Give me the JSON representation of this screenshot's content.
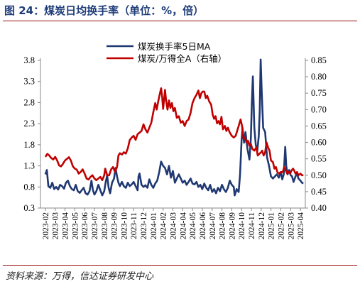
{
  "figure": {
    "title": "图 24：煤炭日均换手率（单位：%，倍）",
    "source": "资料来源：万得，信达证券研发中心"
  },
  "chart_data": {
    "type": "line",
    "xlabel": "",
    "ylabel": "",
    "y_left": {
      "lim": [
        0.3,
        3.8
      ],
      "ticks": [
        "3.8",
        "3.3",
        "2.8",
        "2.3",
        "1.8",
        "1.3",
        "0.8",
        "0.3"
      ]
    },
    "y_right": {
      "lim": [
        0.4,
        0.85
      ],
      "ticks": [
        "0.85",
        "0.80",
        "0.75",
        "0.70",
        "0.65",
        "0.60",
        "0.55",
        "0.50",
        "0.45",
        "0.40"
      ]
    },
    "x_ticks": [
      "2023-02",
      "2023-03",
      "2023-04",
      "2023-05",
      "2023-06",
      "2023-07",
      "2023-08",
      "2023-09",
      "2023-10",
      "2023-11",
      "2023-12",
      "2024-01",
      "2024-02",
      "2024-03",
      "2024-04",
      "2024-05",
      "2024-06",
      "2024-07",
      "2024-08",
      "2024-09",
      "2024-10",
      "2024-11",
      "2024-12",
      "2025-01",
      "2025-02",
      "2025-03",
      "2025-04"
    ],
    "legend": {
      "position": "top-center"
    },
    "colors": {
      "left": "#1f3872",
      "right": "#c00000"
    },
    "series": [
      {
        "name": "煤炭换手率5日MA",
        "axis": "left",
        "points": [
          [
            0.0,
            1.1
          ],
          [
            0.15,
            1.2
          ],
          [
            0.3,
            0.82
          ],
          [
            0.5,
            0.78
          ],
          [
            0.7,
            0.9
          ],
          [
            0.9,
            0.75
          ],
          [
            1.1,
            0.8
          ],
          [
            1.3,
            0.74
          ],
          [
            1.5,
            0.85
          ],
          [
            1.7,
            0.82
          ],
          [
            1.9,
            0.76
          ],
          [
            2.1,
            0.9
          ],
          [
            2.3,
            0.95
          ],
          [
            2.5,
            0.82
          ],
          [
            2.7,
            0.75
          ],
          [
            2.9,
            0.72
          ],
          [
            3.1,
            0.85
          ],
          [
            3.3,
            0.7
          ],
          [
            3.5,
            0.66
          ],
          [
            3.7,
            0.72
          ],
          [
            3.9,
            0.78
          ],
          [
            4.1,
            0.65
          ],
          [
            4.3,
            0.62
          ],
          [
            4.5,
            0.7
          ],
          [
            4.7,
            0.95
          ],
          [
            4.85,
            0.72
          ],
          [
            5.0,
            0.62
          ],
          [
            5.2,
            0.7
          ],
          [
            5.4,
            0.85
          ],
          [
            5.6,
            0.72
          ],
          [
            5.8,
            0.6
          ],
          [
            6.0,
            0.7
          ],
          [
            6.15,
            0.92
          ],
          [
            6.3,
            1.07
          ],
          [
            6.45,
            0.78
          ],
          [
            6.6,
            0.65
          ],
          [
            6.8,
            0.9
          ],
          [
            7.0,
            1.0
          ],
          [
            7.15,
            1.25
          ],
          [
            7.3,
            1.05
          ],
          [
            7.45,
            0.9
          ],
          [
            7.6,
            0.82
          ],
          [
            7.8,
            0.92
          ],
          [
            8.0,
            0.82
          ],
          [
            8.2,
            0.78
          ],
          [
            8.4,
            0.9
          ],
          [
            8.6,
            0.82
          ],
          [
            8.8,
            0.86
          ],
          [
            9.0,
            0.92
          ],
          [
            9.2,
            0.82
          ],
          [
            9.4,
            0.72
          ],
          [
            9.5,
            1.05
          ],
          [
            9.6,
            1.12
          ],
          [
            9.8,
            0.85
          ],
          [
            10.0,
            0.8
          ],
          [
            10.2,
            0.84
          ],
          [
            10.4,
            0.78
          ],
          [
            10.6,
            0.98
          ],
          [
            10.8,
            0.85
          ],
          [
            11.0,
            0.78
          ],
          [
            11.2,
            0.88
          ],
          [
            11.4,
            0.95
          ],
          [
            11.6,
            1.15
          ],
          [
            11.8,
            1.4
          ],
          [
            12.0,
            1.3
          ],
          [
            12.2,
            1.25
          ],
          [
            12.4,
            1.1
          ],
          [
            12.6,
            1.3
          ],
          [
            12.8,
            1.02
          ],
          [
            13.0,
            1.18
          ],
          [
            13.2,
            0.9
          ],
          [
            13.4,
            1.0
          ],
          [
            13.6,
            1.1
          ],
          [
            13.8,
            1.0
          ],
          [
            14.0,
            0.9
          ],
          [
            14.2,
            0.95
          ],
          [
            14.4,
            0.85
          ],
          [
            14.6,
            0.92
          ],
          [
            14.8,
            1.0
          ],
          [
            15.0,
            0.88
          ],
          [
            15.2,
            0.86
          ],
          [
            15.4,
            0.92
          ],
          [
            15.6,
            0.8
          ],
          [
            15.8,
            0.85
          ],
          [
            16.0,
            0.75
          ],
          [
            16.2,
            0.88
          ],
          [
            16.4,
            0.78
          ],
          [
            16.6,
            0.72
          ],
          [
            16.8,
            0.85
          ],
          [
            17.0,
            0.68
          ],
          [
            17.2,
            0.75
          ],
          [
            17.4,
            0.65
          ],
          [
            17.6,
            0.78
          ],
          [
            17.8,
            0.7
          ],
          [
            18.0,
            0.85
          ],
          [
            18.2,
            0.75
          ],
          [
            18.4,
            0.68
          ],
          [
            18.6,
            0.78
          ],
          [
            18.8,
            0.95
          ],
          [
            19.0,
            0.85
          ],
          [
            19.2,
            0.8
          ],
          [
            19.3,
            0.6
          ],
          [
            19.5,
            0.75
          ],
          [
            19.7,
            0.68
          ],
          [
            19.85,
            1.1
          ],
          [
            20.0,
            1.9
          ],
          [
            20.1,
            2.2
          ],
          [
            20.25,
            1.85
          ],
          [
            20.4,
            2.1
          ],
          [
            20.6,
            1.7
          ],
          [
            20.8,
            1.45
          ],
          [
            20.95,
            1.95
          ],
          [
            21.05,
            2.8
          ],
          [
            21.15,
            3.42
          ],
          [
            21.3,
            2.2
          ],
          [
            21.45,
            1.8
          ],
          [
            21.6,
            1.65
          ],
          [
            21.75,
            2.0
          ],
          [
            21.85,
            2.6
          ],
          [
            21.95,
            3.82
          ],
          [
            22.05,
            3.1
          ],
          [
            22.2,
            2.2
          ],
          [
            22.4,
            2.1
          ],
          [
            22.6,
            1.5
          ],
          [
            22.8,
            1.3
          ],
          [
            23.0,
            1.05
          ],
          [
            23.2,
            1.0
          ],
          [
            23.4,
            1.05
          ],
          [
            23.6,
            1.1
          ],
          [
            23.8,
            1.02
          ],
          [
            24.0,
            1.15
          ],
          [
            24.15,
            0.98
          ],
          [
            24.3,
            1.1
          ],
          [
            24.45,
            1.75
          ],
          [
            24.55,
            1.3
          ],
          [
            24.7,
            1.1
          ],
          [
            24.85,
            1.2
          ],
          [
            25.0,
            1.08
          ],
          [
            25.15,
            1.05
          ],
          [
            25.3,
            0.92
          ],
          [
            25.5,
            1.05
          ],
          [
            25.65,
            1.12
          ],
          [
            25.8,
            1.0
          ],
          [
            26.0,
            0.95
          ],
          [
            26.15,
            0.9
          ],
          [
            26.3,
            0.88
          ]
        ]
      },
      {
        "name": "煤炭/万得全A（右轴）",
        "axis": "right",
        "points": [
          [
            0.0,
            0.556
          ],
          [
            0.2,
            0.565
          ],
          [
            0.4,
            0.56
          ],
          [
            0.6,
            0.552
          ],
          [
            0.8,
            0.548
          ],
          [
            1.0,
            0.556
          ],
          [
            1.2,
            0.545
          ],
          [
            1.4,
            0.53
          ],
          [
            1.6,
            0.527
          ],
          [
            1.8,
            0.535
          ],
          [
            2.0,
            0.545
          ],
          [
            2.2,
            0.55
          ],
          [
            2.4,
            0.555
          ],
          [
            2.6,
            0.545
          ],
          [
            2.8,
            0.527
          ],
          [
            3.0,
            0.52
          ],
          [
            3.2,
            0.517
          ],
          [
            3.4,
            0.505
          ],
          [
            3.6,
            0.51
          ],
          [
            3.8,
            0.518
          ],
          [
            4.0,
            0.505
          ],
          [
            4.2,
            0.49
          ],
          [
            4.4,
            0.487
          ],
          [
            4.6,
            0.495
          ],
          [
            4.8,
            0.5
          ],
          [
            5.0,
            0.49
          ],
          [
            5.2,
            0.485
          ],
          [
            5.4,
            0.49
          ],
          [
            5.6,
            0.495
          ],
          [
            5.8,
            0.485
          ],
          [
            6.0,
            0.5
          ],
          [
            6.1,
            0.52
          ],
          [
            6.3,
            0.5
          ],
          [
            6.5,
            0.5
          ],
          [
            6.7,
            0.518
          ],
          [
            6.9,
            0.525
          ],
          [
            7.1,
            0.51
          ],
          [
            7.3,
            0.525
          ],
          [
            7.45,
            0.56
          ],
          [
            7.6,
            0.567
          ],
          [
            7.8,
            0.563
          ],
          [
            8.0,
            0.57
          ],
          [
            8.2,
            0.566
          ],
          [
            8.4,
            0.582
          ],
          [
            8.6,
            0.607
          ],
          [
            8.8,
            0.615
          ],
          [
            9.0,
            0.62
          ],
          [
            9.2,
            0.608
          ],
          [
            9.4,
            0.625
          ],
          [
            9.6,
            0.63
          ],
          [
            9.8,
            0.635
          ],
          [
            10.0,
            0.655
          ],
          [
            10.2,
            0.64
          ],
          [
            10.4,
            0.63
          ],
          [
            10.6,
            0.645
          ],
          [
            10.8,
            0.66
          ],
          [
            11.0,
            0.692
          ],
          [
            11.2,
            0.72
          ],
          [
            11.35,
            0.7
          ],
          [
            11.5,
            0.725
          ],
          [
            11.65,
            0.745
          ],
          [
            11.8,
            0.765
          ],
          [
            11.9,
            0.74
          ],
          [
            12.0,
            0.702
          ],
          [
            12.1,
            0.73
          ],
          [
            12.2,
            0.76
          ],
          [
            12.3,
            0.73
          ],
          [
            12.45,
            0.7
          ],
          [
            12.6,
            0.728
          ],
          [
            12.75,
            0.705
          ],
          [
            12.9,
            0.72
          ],
          [
            13.05,
            0.695
          ],
          [
            13.2,
            0.705
          ],
          [
            13.4,
            0.675
          ],
          [
            13.6,
            0.68
          ],
          [
            13.8,
            0.66
          ],
          [
            14.0,
            0.665
          ],
          [
            14.2,
            0.65
          ],
          [
            14.4,
            0.665
          ],
          [
            14.6,
            0.67
          ],
          [
            14.8,
            0.69
          ],
          [
            15.0,
            0.72
          ],
          [
            15.2,
            0.735
          ],
          [
            15.4,
            0.745
          ],
          [
            15.6,
            0.758
          ],
          [
            15.75,
            0.735
          ],
          [
            15.9,
            0.75
          ],
          [
            16.05,
            0.755
          ],
          [
            16.2,
            0.755
          ],
          [
            16.35,
            0.735
          ],
          [
            16.5,
            0.742
          ],
          [
            16.7,
            0.725
          ],
          [
            16.9,
            0.715
          ],
          [
            17.05,
            0.685
          ],
          [
            17.2,
            0.672
          ],
          [
            17.35,
            0.68
          ],
          [
            17.5,
            0.658
          ],
          [
            17.65,
            0.665
          ],
          [
            17.8,
            0.655
          ],
          [
            17.95,
            0.678
          ],
          [
            18.1,
            0.64
          ],
          [
            18.3,
            0.65
          ],
          [
            18.45,
            0.635
          ],
          [
            18.6,
            0.645
          ],
          [
            18.8,
            0.63
          ],
          [
            19.0,
            0.62
          ],
          [
            19.2,
            0.615
          ],
          [
            19.4,
            0.62
          ],
          [
            19.6,
            0.64
          ],
          [
            19.75,
            0.655
          ],
          [
            19.9,
            0.67
          ],
          [
            20.05,
            0.65
          ],
          [
            20.2,
            0.61
          ],
          [
            20.35,
            0.615
          ],
          [
            20.5,
            0.6
          ],
          [
            20.65,
            0.605
          ],
          [
            20.8,
            0.59
          ],
          [
            20.95,
            0.595
          ],
          [
            21.1,
            0.58
          ],
          [
            21.3,
            0.575
          ],
          [
            21.5,
            0.585
          ],
          [
            21.65,
            0.56
          ],
          [
            21.8,
            0.565
          ],
          [
            22.0,
            0.57
          ],
          [
            22.1,
            0.575
          ],
          [
            22.25,
            0.56
          ],
          [
            22.4,
            0.57
          ],
          [
            22.55,
            0.6
          ],
          [
            22.7,
            0.585
          ],
          [
            22.85,
            0.575
          ],
          [
            23.0,
            0.545
          ],
          [
            23.2,
            0.54
          ],
          [
            23.35,
            0.52
          ],
          [
            23.5,
            0.525
          ],
          [
            23.65,
            0.51
          ],
          [
            23.8,
            0.505
          ],
          [
            24.0,
            0.51
          ],
          [
            24.2,
            0.51
          ],
          [
            24.35,
            0.525
          ],
          [
            24.5,
            0.515
          ],
          [
            24.65,
            0.505
          ],
          [
            24.8,
            0.51
          ],
          [
            24.95,
            0.505
          ],
          [
            25.1,
            0.515
          ],
          [
            25.25,
            0.52
          ],
          [
            25.35,
            0.515
          ],
          [
            25.5,
            0.505
          ],
          [
            25.65,
            0.51
          ],
          [
            25.8,
            0.5
          ],
          [
            26.0,
            0.505
          ],
          [
            26.15,
            0.5
          ],
          [
            26.3,
            0.5
          ]
        ]
      }
    ]
  }
}
